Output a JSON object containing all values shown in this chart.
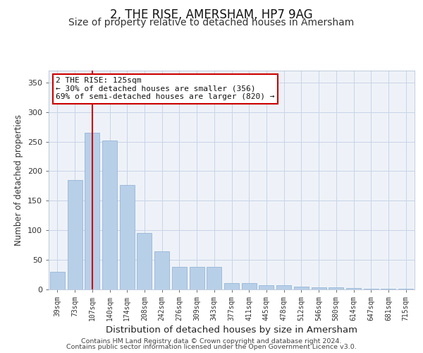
{
  "title": "2, THE RISE, AMERSHAM, HP7 9AG",
  "subtitle": "Size of property relative to detached houses in Amersham",
  "xlabel": "Distribution of detached houses by size in Amersham",
  "ylabel": "Number of detached properties",
  "categories": [
    "39sqm",
    "73sqm",
    "107sqm",
    "140sqm",
    "174sqm",
    "208sqm",
    "242sqm",
    "276sqm",
    "309sqm",
    "343sqm",
    "377sqm",
    "411sqm",
    "445sqm",
    "478sqm",
    "512sqm",
    "546sqm",
    "580sqm",
    "614sqm",
    "647sqm",
    "681sqm",
    "715sqm"
  ],
  "values": [
    30,
    185,
    265,
    252,
    177,
    95,
    65,
    38,
    38,
    38,
    11,
    11,
    7,
    7,
    5,
    3,
    3,
    2,
    1,
    1,
    1
  ],
  "bar_color": "#b8cfe8",
  "bar_edge_color": "#8aafd4",
  "grid_color": "#c8d4e8",
  "vline_x": 2,
  "vline_color": "#cc0000",
  "annotation_box_text": "2 THE RISE: 125sqm\n← 30% of detached houses are smaller (356)\n69% of semi-detached houses are larger (820) →",
  "ylim": [
    0,
    370
  ],
  "yticks": [
    0,
    50,
    100,
    150,
    200,
    250,
    300,
    350
  ],
  "footer_line1": "Contains HM Land Registry data © Crown copyright and database right 2024.",
  "footer_line2": "Contains public sector information licensed under the Open Government Licence v3.0.",
  "bg_color": "#eef2f8",
  "title_fontsize": 12,
  "subtitle_fontsize": 10,
  "xlabel_fontsize": 9.5,
  "ylabel_fontsize": 8.5
}
